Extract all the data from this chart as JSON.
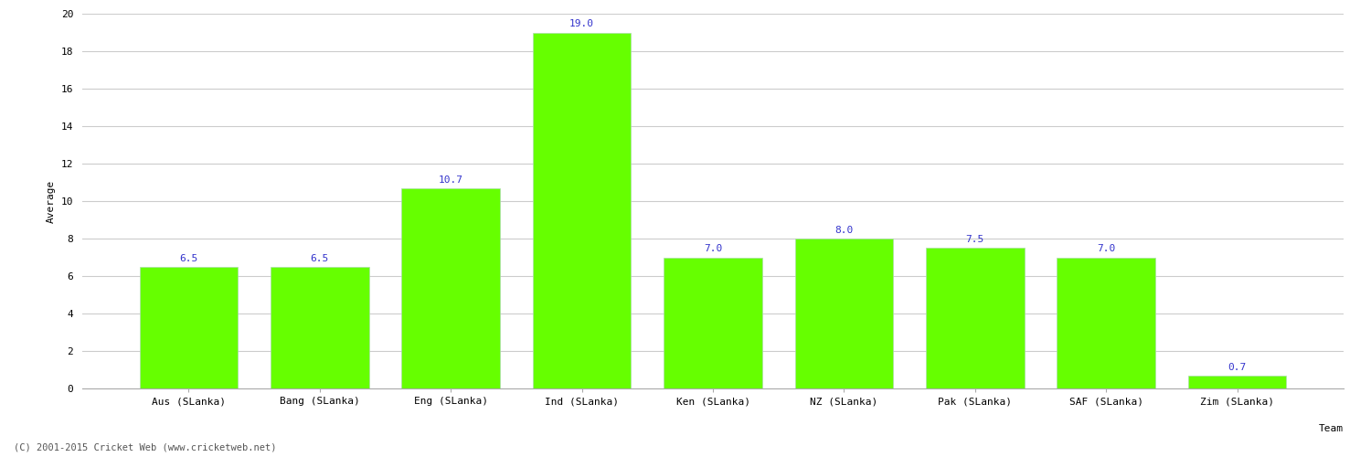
{
  "categories": [
    "Aus (SLanka)",
    "Bang (SLanka)",
    "Eng (SLanka)",
    "Ind (SLanka)",
    "Ken (SLanka)",
    "NZ (SLanka)",
    "Pak (SLanka)",
    "SAF (SLanka)",
    "Zim (SLanka)"
  ],
  "values": [
    6.5,
    6.5,
    10.7,
    19.0,
    7.0,
    8.0,
    7.5,
    7.0,
    0.7
  ],
  "bar_color": "#66ff00",
  "bar_edge_color": "#aaddaa",
  "label_color": "#3333cc",
  "xlabel": "Team",
  "ylabel": "Average",
  "ylim": [
    0,
    20
  ],
  "yticks": [
    0,
    2,
    4,
    6,
    8,
    10,
    12,
    14,
    16,
    18,
    20
  ],
  "grid_color": "#cccccc",
  "background_color": "#ffffff",
  "label_fontsize": 8,
  "axis_fontsize": 8,
  "xlabel_fontsize": 8,
  "ylabel_fontsize": 8,
  "footer": "(C) 2001-2015 Cricket Web (www.cricketweb.net)",
  "bar_width": 0.75
}
